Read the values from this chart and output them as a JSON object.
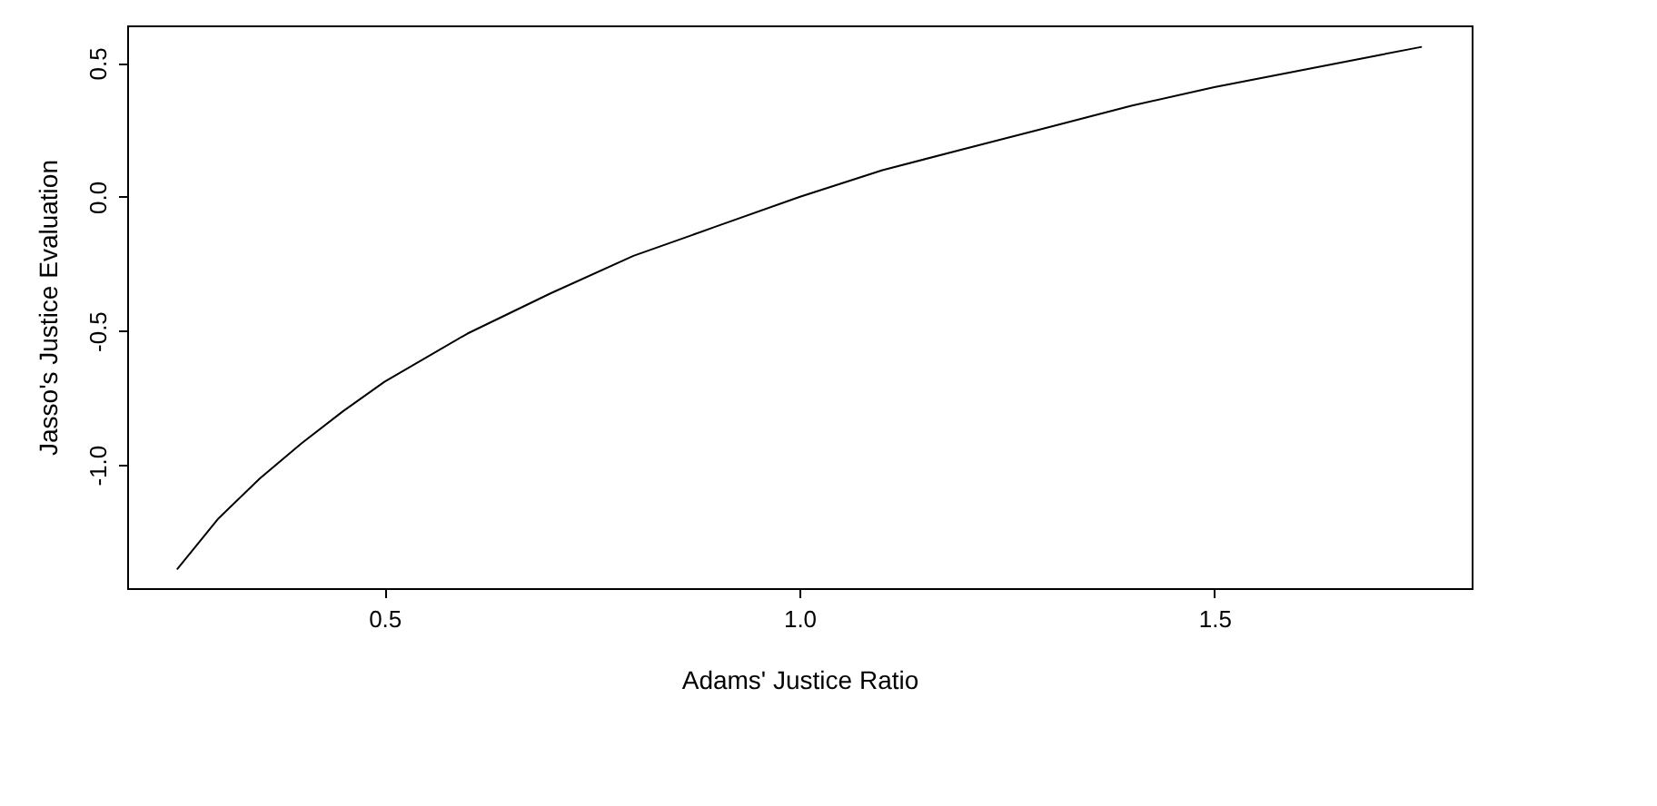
{
  "chart_data": {
    "type": "line",
    "xlabel": "Adams' Justice Ratio",
    "ylabel": "Jasso's Justice Evaluation",
    "x": [
      0.25,
      0.3,
      0.35,
      0.4,
      0.45,
      0.5,
      0.6,
      0.7,
      0.8,
      0.9,
      1.0,
      1.1,
      1.2,
      1.3,
      1.4,
      1.5,
      1.6,
      1.7,
      1.75
    ],
    "series": [
      {
        "color": "#000000",
        "values": [
          -1.39,
          -1.2,
          -1.05,
          -0.92,
          -0.8,
          -0.69,
          -0.51,
          -0.36,
          -0.22,
          -0.11,
          0.0,
          0.1,
          0.18,
          0.26,
          0.34,
          0.41,
          0.47,
          0.53,
          0.56
        ]
      }
    ],
    "xlim": [
      0.19,
      1.81
    ],
    "ylim": [
      -1.46,
      0.64
    ],
    "xticks": [
      0.5,
      {
        "value": 1.0,
        "label": "1.0"
      },
      1.5
    ],
    "yticks": [
      {
        "value": -1.0,
        "label": "-1.0"
      },
      -0.5,
      {
        "value": 0.0,
        "label": "0.0"
      },
      0.5
    ],
    "grid": false,
    "marker": "none",
    "line_style": "solid"
  }
}
